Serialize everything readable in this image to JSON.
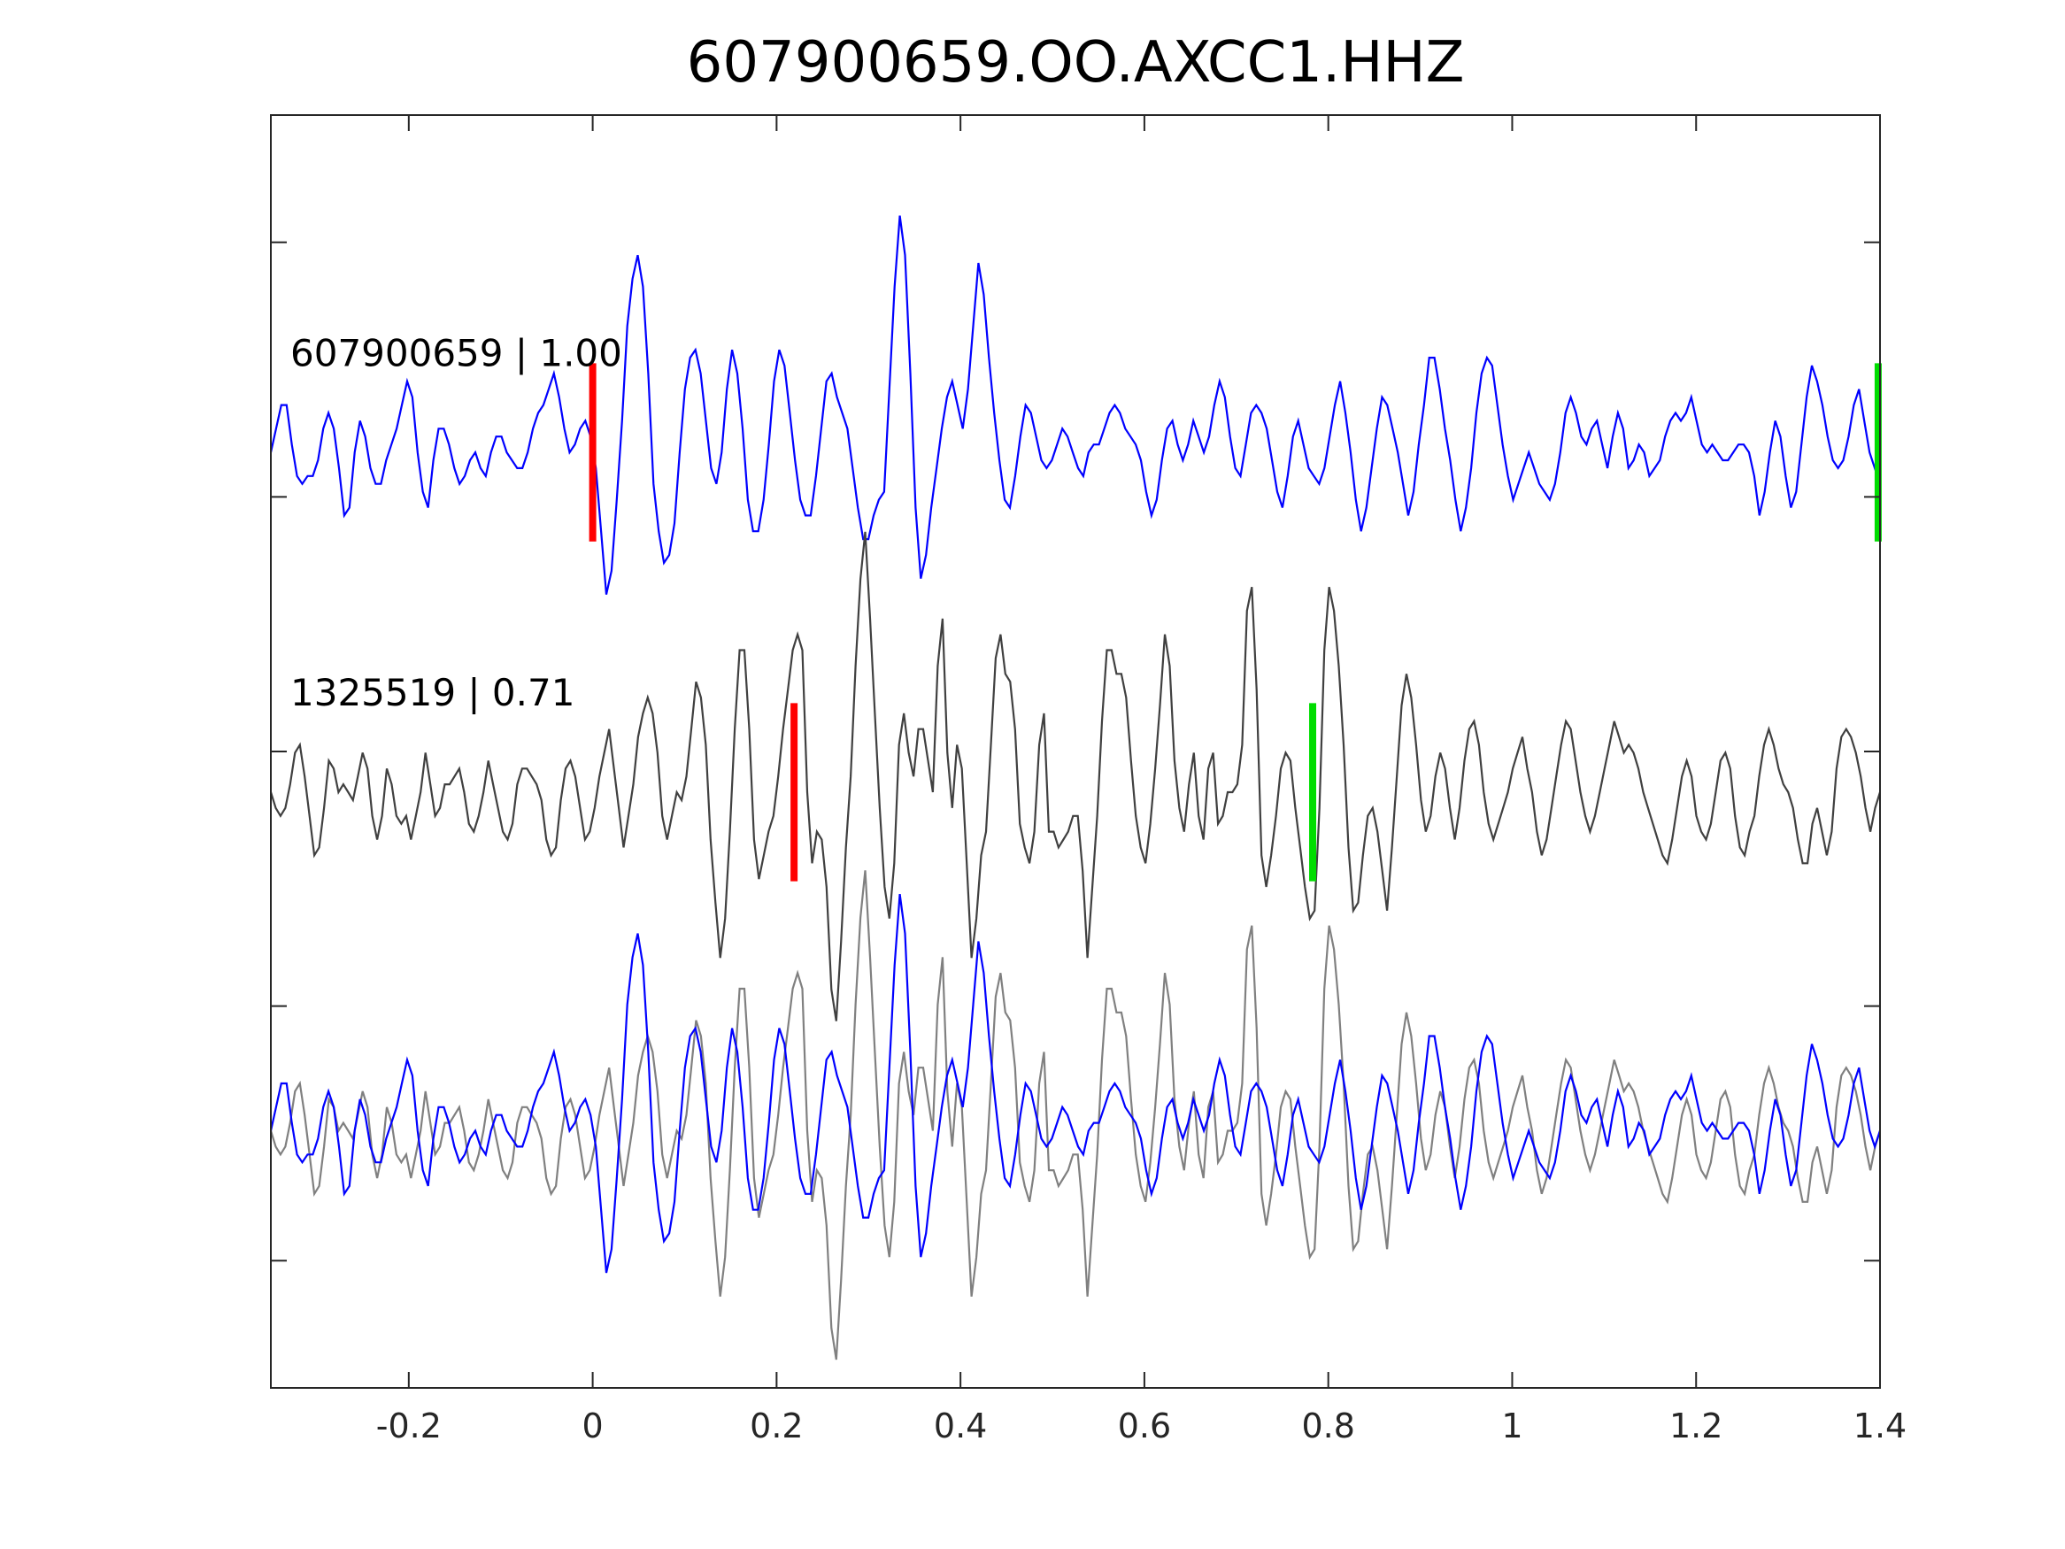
{
  "title": "607900659.OO.AXCC1.HHZ",
  "chart_data": {
    "type": "line",
    "title": "607900659.OO.AXCC1.HHZ",
    "xlabel": "",
    "ylabel": "",
    "xlim": [
      -0.35,
      1.4
    ],
    "xticks": [
      -0.2,
      0,
      0.2,
      0.4,
      0.6,
      0.8,
      1,
      1.2,
      1.4
    ],
    "xtick_labels": [
      "-0.2",
      "0",
      "0.2",
      "0.4",
      "0.6",
      "0.8",
      "1",
      "1.2",
      "1.4"
    ],
    "ylim": [
      0,
      1
    ],
    "grid": false,
    "traces": [
      {
        "label": "607900659 | 1.00",
        "color": "#0000ff",
        "offset": 0.735,
        "pick_red": 0.0,
        "pick_green": 1.4,
        "samples": [
          0.0,
          0.3,
          0.6,
          0.6,
          0.1,
          -0.3,
          -0.4,
          -0.3,
          -0.3,
          -0.1,
          0.3,
          0.5,
          0.3,
          -0.2,
          -0.8,
          -0.7,
          0.0,
          0.4,
          0.2,
          -0.2,
          -0.4,
          -0.4,
          -0.1,
          0.1,
          0.3,
          0.6,
          0.9,
          0.7,
          0.0,
          -0.5,
          -0.7,
          -0.1,
          0.3,
          0.3,
          0.1,
          -0.2,
          -0.4,
          -0.3,
          -0.1,
          0.0,
          -0.2,
          -0.3,
          0.0,
          0.2,
          0.2,
          0.0,
          -0.1,
          -0.2,
          -0.2,
          0.0,
          0.3,
          0.5,
          0.6,
          0.8,
          1.0,
          0.7,
          0.3,
          0.0,
          0.1,
          0.3,
          0.4,
          0.2,
          -0.2,
          -1.0,
          -1.8,
          -1.5,
          -0.6,
          0.4,
          1.6,
          2.2,
          2.5,
          2.1,
          1.0,
          -0.4,
          -1.0,
          -1.4,
          -1.3,
          -0.9,
          0.0,
          0.8,
          1.2,
          1.3,
          1.0,
          0.4,
          -0.2,
          -0.4,
          0.0,
          0.8,
          1.3,
          1.0,
          0.3,
          -0.6,
          -1.0,
          -1.0,
          -0.6,
          0.1,
          0.9,
          1.3,
          1.1,
          0.5,
          -0.1,
          -0.6,
          -0.8,
          -0.8,
          -0.3,
          0.3,
          0.9,
          1.0,
          0.7,
          0.5,
          0.3,
          -0.2,
          -0.7,
          -1.1,
          -1.1,
          -0.8,
          -0.6,
          -0.5,
          0.8,
          2.1,
          3.0,
          2.5,
          1.0,
          -0.7,
          -1.6,
          -1.3,
          -0.7,
          -0.2,
          0.3,
          0.7,
          0.9,
          0.6,
          0.3,
          0.8,
          1.6,
          2.4,
          2.0,
          1.2,
          0.5,
          -0.1,
          -0.6,
          -0.7,
          -0.3,
          0.2,
          0.6,
          0.5,
          0.2,
          -0.1,
          -0.2,
          -0.1,
          0.1,
          0.3,
          0.2,
          0.0,
          -0.2,
          -0.3,
          0.0,
          0.1,
          0.1,
          0.3,
          0.5,
          0.6,
          0.5,
          0.3,
          0.2,
          0.1,
          -0.1,
          -0.5,
          -0.8,
          -0.6,
          -0.1,
          0.3,
          0.4,
          0.1,
          -0.1,
          0.1,
          0.4,
          0.2,
          0.0,
          0.2,
          0.6,
          0.9,
          0.7,
          0.2,
          -0.2,
          -0.3,
          0.1,
          0.5,
          0.6,
          0.5,
          0.3,
          -0.1,
          -0.5,
          -0.7,
          -0.3,
          0.2,
          0.4,
          0.1,
          -0.2,
          -0.3,
          -0.4,
          -0.2,
          0.2,
          0.6,
          0.9,
          0.5,
          0.0,
          -0.6,
          -1.0,
          -0.7,
          -0.2,
          0.3,
          0.7,
          0.6,
          0.3,
          0.0,
          -0.4,
          -0.8,
          -0.5,
          0.1,
          0.6,
          1.2,
          1.2,
          0.8,
          0.3,
          -0.1,
          -0.6,
          -1.0,
          -0.7,
          -0.2,
          0.5,
          1.0,
          1.2,
          1.1,
          0.6,
          0.1,
          -0.3,
          -0.6,
          -0.4,
          -0.2,
          0.0,
          -0.2,
          -0.4,
          -0.5,
          -0.6,
          -0.4,
          0.0,
          0.5,
          0.7,
          0.5,
          0.2,
          0.1,
          0.3,
          0.4,
          0.1,
          -0.2,
          0.2,
          0.5,
          0.3,
          -0.2,
          -0.1,
          0.1,
          0.0,
          -0.3,
          -0.2,
          -0.1,
          0.2,
          0.4,
          0.5,
          0.4,
          0.5,
          0.7,
          0.4,
          0.1,
          0.0,
          0.1,
          0.0,
          -0.1,
          -0.1,
          0.0,
          0.1,
          0.1,
          0.0,
          -0.3,
          -0.8,
          -0.5,
          0.0,
          0.4,
          0.2,
          -0.3,
          -0.7,
          -0.5,
          0.1,
          0.7,
          1.1,
          0.9,
          0.6,
          0.2,
          -0.1,
          -0.2,
          -0.1,
          0.2,
          0.6,
          0.8,
          0.4,
          0.0,
          -0.2,
          0.0
        ]
      },
      {
        "label": "1325519 | 0.71",
        "color": "#404040",
        "offset": 0.468,
        "pick_red": 0.219,
        "pick_green": 0.783,
        "samples": [
          0.0,
          -0.2,
          -0.3,
          -0.2,
          0.1,
          0.5,
          0.6,
          0.2,
          -0.3,
          -0.8,
          -0.7,
          -0.2,
          0.4,
          0.3,
          0.0,
          0.1,
          0.0,
          -0.1,
          0.2,
          0.5,
          0.3,
          -0.3,
          -0.6,
          -0.3,
          0.3,
          0.1,
          -0.3,
          -0.4,
          -0.3,
          -0.6,
          -0.3,
          0.0,
          0.5,
          0.1,
          -0.3,
          -0.2,
          0.1,
          0.1,
          0.2,
          0.3,
          0.0,
          -0.4,
          -0.5,
          -0.3,
          0.0,
          0.4,
          0.1,
          -0.2,
          -0.5,
          -0.6,
          -0.4,
          0.1,
          0.3,
          0.3,
          0.2,
          0.1,
          -0.1,
          -0.6,
          -0.8,
          -0.7,
          -0.1,
          0.3,
          0.4,
          0.2,
          -0.2,
          -0.6,
          -0.5,
          -0.2,
          0.2,
          0.5,
          0.8,
          0.3,
          -0.2,
          -0.7,
          -0.3,
          0.1,
          0.7,
          1.0,
          1.2,
          1.0,
          0.5,
          -0.3,
          -0.6,
          -0.3,
          0.0,
          -0.1,
          0.2,
          0.8,
          1.4,
          1.2,
          0.6,
          -0.6,
          -1.4,
          -2.1,
          -1.6,
          -0.5,
          0.8,
          1.8,
          1.8,
          0.8,
          -0.6,
          -1.1,
          -0.8,
          -0.5,
          -0.3,
          0.2,
          0.8,
          1.3,
          1.8,
          2.0,
          1.8,
          0.0,
          -0.9,
          -0.5,
          -0.6,
          -1.2,
          -2.5,
          -2.9,
          -1.9,
          -0.7,
          0.2,
          1.6,
          2.7,
          3.3,
          2.2,
          1.0,
          -0.2,
          -1.2,
          -1.6,
          -0.9,
          0.6,
          1.0,
          0.5,
          0.2,
          0.8,
          0.8,
          0.4,
          0.0,
          1.6,
          2.2,
          0.5,
          -0.2,
          0.6,
          0.3,
          -0.9,
          -2.1,
          -1.6,
          -0.8,
          -0.5,
          0.6,
          1.7,
          2.0,
          1.5,
          1.4,
          0.8,
          -0.4,
          -0.7,
          -0.9,
          -0.5,
          0.6,
          1.0,
          -0.5,
          -0.5,
          -0.7,
          -0.6,
          -0.5,
          -0.3,
          -0.3,
          -1.0,
          -2.1,
          -1.2,
          -0.3,
          0.9,
          1.8,
          1.8,
          1.5,
          1.5,
          1.2,
          0.4,
          -0.3,
          -0.7,
          -0.9,
          -0.4,
          0.3,
          1.1,
          2.0,
          1.6,
          0.4,
          -0.2,
          -0.5,
          0.1,
          0.5,
          -0.3,
          -0.6,
          0.3,
          0.5,
          -0.4,
          -0.3,
          0.0,
          0.0,
          0.1,
          0.6,
          2.3,
          2.6,
          1.3,
          -0.8,
          -1.2,
          -0.8,
          -0.3,
          0.3,
          0.5,
          0.4,
          -0.2,
          -0.7,
          -1.2,
          -1.6,
          -1.5,
          -0.2,
          1.8,
          2.6,
          2.3,
          1.6,
          0.6,
          -0.7,
          -1.5,
          -1.4,
          -0.8,
          -0.3,
          -0.2,
          -0.5,
          -1.0,
          -1.5,
          -0.7,
          0.2,
          1.1,
          1.5,
          1.2,
          0.6,
          -0.1,
          -0.5,
          -0.3,
          0.2,
          0.5,
          0.3,
          -0.2,
          -0.6,
          -0.2,
          0.4,
          0.8,
          0.9,
          0.6,
          0.0,
          -0.4,
          -0.6,
          -0.4,
          -0.2,
          0.0,
          0.3,
          0.5,
          0.7,
          0.3,
          0.0,
          -0.5,
          -0.8,
          -0.6,
          -0.2,
          0.2,
          0.6,
          0.9,
          0.8,
          0.4,
          0.0,
          -0.3,
          -0.5,
          -0.3,
          0.0,
          0.3,
          0.6,
          0.9,
          0.7,
          0.5,
          0.6,
          0.5,
          0.3,
          0.0,
          -0.2,
          -0.4,
          -0.6,
          -0.8,
          -0.9,
          -0.6,
          -0.2,
          0.2,
          0.4,
          0.2,
          -0.3,
          -0.5,
          -0.6,
          -0.4,
          0.0,
          0.4,
          0.5,
          0.3,
          -0.3,
          -0.7,
          -0.8,
          -0.5,
          -0.3,
          0.2,
          0.6,
          0.8,
          0.6,
          0.3,
          0.1,
          0.0,
          -0.2,
          -0.6,
          -0.9,
          -0.9,
          -0.4,
          -0.2,
          -0.5,
          -0.8,
          -0.5,
          0.3,
          0.7,
          0.8,
          0.7,
          0.5,
          0.2,
          -0.2,
          -0.5,
          -0.2,
          0.0
        ]
      }
    ],
    "overlay": {
      "offset": 0.202,
      "series_colors": [
        "#0000ff",
        "#808080"
      ]
    }
  }
}
